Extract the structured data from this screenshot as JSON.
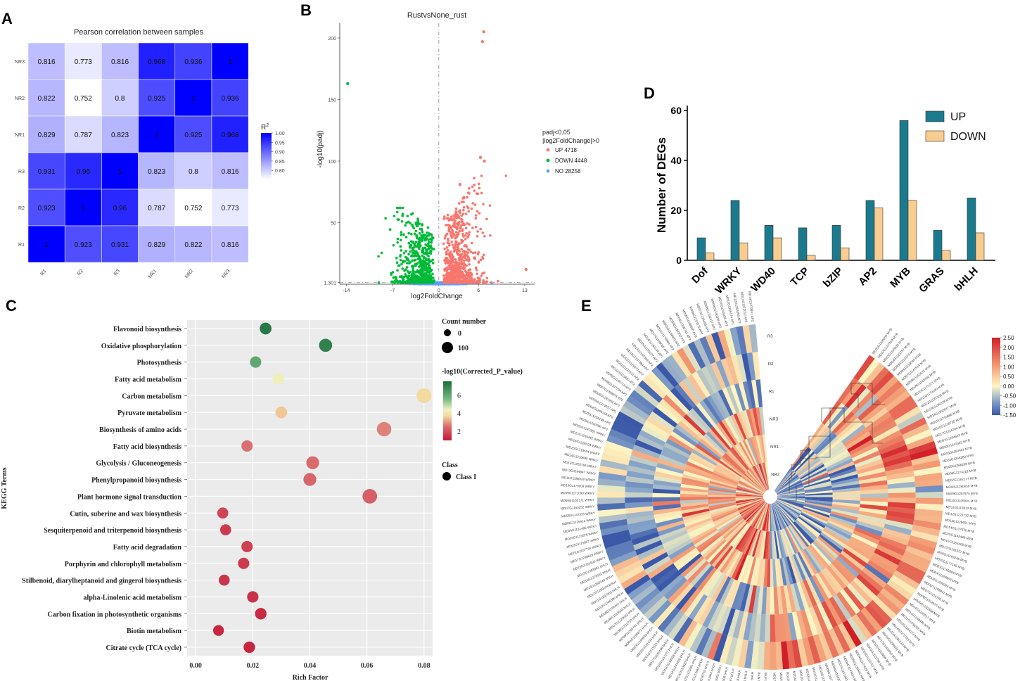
{
  "panel_labels": {
    "A": "A",
    "B": "B",
    "C": "C",
    "D": "D",
    "E": "E"
  },
  "chart_data": [
    {
      "panel": "A",
      "type": "heatmap",
      "title": "Pearson correlation between samples",
      "rows": [
        "NR3",
        "NR2",
        "NR1",
        "R3",
        "R2",
        "R1"
      ],
      "cols": [
        "R1",
        "R2",
        "R3",
        "NR1",
        "NR2",
        "NR3"
      ],
      "values": [
        [
          "0.816",
          "0.773",
          "0.816",
          "0.968",
          "0.936",
          "1"
        ],
        [
          "0.822",
          "0.752",
          "0.8",
          "0.925",
          "1",
          "0.936"
        ],
        [
          "0.829",
          "0.787",
          "0.823",
          "1",
          "0.925",
          "0.968"
        ],
        [
          "0.931",
          "0.96",
          "1",
          "0.823",
          "0.8",
          "0.816"
        ],
        [
          "0.923",
          "1",
          "0.96",
          "0.787",
          "0.752",
          "0.773"
        ],
        [
          "1",
          "0.923",
          "0.931",
          "0.829",
          "0.822",
          "0.816"
        ]
      ],
      "legend_title": "R",
      "legend_title_sup": "2",
      "legend_ticks": [
        "1.00",
        "0.95",
        "0.90",
        "0.85",
        "0.80"
      ],
      "legend_tick_values": [
        1.0,
        0.95,
        0.9,
        0.85,
        0.8
      ],
      "range": [
        0.752,
        1.0
      ],
      "colors": {
        "low": "#ffffff",
        "high": "#0000ff"
      }
    },
    {
      "panel": "B",
      "type": "scatter",
      "title": "RustvsNone_rust",
      "xlabel": "log2FoldChange",
      "ylabel": "-log10(padj)",
      "xlim": [
        -15,
        14.5
      ],
      "ylim": [
        0,
        212
      ],
      "xticks": [
        "-14",
        "-7",
        "0",
        "6",
        "13"
      ],
      "xtick_values": [
        -14,
        -7,
        0,
        6,
        13
      ],
      "yticks": [
        "1.301",
        "50",
        "100",
        "150",
        "200"
      ],
      "ytick_values": [
        1.301,
        50,
        100,
        150,
        200
      ],
      "threshold_y": 1.301,
      "legend_title": "padj<0.05\n|log2FoldChange|>0",
      "legend_title_lines": [
        "padj<0.05",
        "|log2FoldChange|>0"
      ],
      "series": [
        {
          "name": "UP",
          "label": "UP 4718",
          "count": 4718,
          "color": "#f8766d"
        },
        {
          "name": "DOWN",
          "label": "DOWN 4448",
          "count": 4448,
          "color": "#00ba38"
        },
        {
          "name": "NO",
          "label": "NO 28258",
          "count": 28258,
          "color": "#619cff"
        }
      ],
      "outliers": [
        {
          "x": -13.8,
          "y": 163,
          "series": "DOWN"
        },
        {
          "x": 6.8,
          "y": 205,
          "series": "UP"
        },
        {
          "x": 6.6,
          "y": 197,
          "series": "UP"
        },
        {
          "x": 6.3,
          "y": 103,
          "series": "UP"
        },
        {
          "x": 6.9,
          "y": 100,
          "series": "UP"
        },
        {
          "x": 3.2,
          "y": 81,
          "series": "UP"
        },
        {
          "x": 13.2,
          "y": 12,
          "series": "UP"
        }
      ]
    },
    {
      "panel": "C",
      "type": "scatter",
      "title": "",
      "xlabel": "Rich Factor",
      "ylabel": "KEGG Terms",
      "xlim": [
        -0.003,
        0.083
      ],
      "xticks": [
        "0.00",
        "0.02",
        "0.04",
        "0.06",
        "0.08"
      ],
      "xtick_values": [
        0,
        0.02,
        0.04,
        0.06,
        0.08
      ],
      "terms": [
        {
          "term": "Flavonoid biosynthesis",
          "rich": 0.0245,
          "count": 20,
          "p": 7.2
        },
        {
          "term": "Oxidative phosphorylation",
          "rich": 0.0455,
          "count": 45,
          "p": 7.0
        },
        {
          "term": "Photosynthesis",
          "rich": 0.021,
          "count": 15,
          "p": 6.0
        },
        {
          "term": "Fatty acid metabolism",
          "rich": 0.029,
          "count": 18,
          "p": 4.3
        },
        {
          "term": "Carbon metabolism",
          "rich": 0.08,
          "count": 90,
          "p": 3.7
        },
        {
          "term": "Pyruvate metabolism",
          "rich": 0.03,
          "count": 20,
          "p": 3.5
        },
        {
          "term": "Biosynthesis of amino acids",
          "rich": 0.066,
          "count": 80,
          "p": 2.8
        },
        {
          "term": "Fatty acid biosynthesis",
          "rich": 0.018,
          "count": 14,
          "p": 2.6
        },
        {
          "term": "Glycolysis / Gluconeogenesis",
          "rich": 0.041,
          "count": 40,
          "p": 2.5
        },
        {
          "term": "Phenylpropanoid biosynthesis",
          "rich": 0.04,
          "count": 40,
          "p": 2.4
        },
        {
          "term": "Plant hormone signal transduction",
          "rich": 0.061,
          "count": 85,
          "p": 2.3
        },
        {
          "term": "Cutin, suberine and wax biosynthesis",
          "rich": 0.0095,
          "count": 10,
          "p": 1.8
        },
        {
          "term": "Sesquiterpenoid and triterpenoid biosynthesis",
          "rich": 0.0105,
          "count": 10,
          "p": 1.6
        },
        {
          "term": "Fatty acid degradation",
          "rich": 0.018,
          "count": 14,
          "p": 1.7
        },
        {
          "term": "Porphyrin and chlorophyll metabolism",
          "rich": 0.0168,
          "count": 14,
          "p": 1.6
        },
        {
          "term": "Stilbenoid, diarylheptanoid and gingerol biosynthesis",
          "rich": 0.01,
          "count": 10,
          "p": 1.5
        },
        {
          "term": "alpha-Linolenic acid metabolism",
          "rich": 0.02,
          "count": 14,
          "p": 1.4
        },
        {
          "term": "Carbon fixation in photosynthetic organisms",
          "rich": 0.0228,
          "count": 16,
          "p": 1.3
        },
        {
          "term": "Biotin metabolism",
          "rich": 0.008,
          "count": 8,
          "p": 1.2
        },
        {
          "term": "Citrate cycle (TCA cycle)",
          "rich": 0.0188,
          "count": 16,
          "p": 1.2
        }
      ],
      "legend": {
        "count_title": "Count number",
        "count_labels": [
          "0",
          "100"
        ],
        "color_title": "-log10(Corrected_P_value)",
        "color_ticks": [
          "6",
          "4",
          "2"
        ],
        "color_tick_values": [
          6,
          4,
          2
        ],
        "color_range": [
          1,
          7.5
        ],
        "class_title": "Class",
        "class_label": "Class I"
      }
    },
    {
      "panel": "D",
      "type": "bar",
      "title": "",
      "xlabel": "",
      "ylabel": "Number of DEGs",
      "ylim": [
        0,
        62
      ],
      "yticks": [
        "0",
        "20",
        "40",
        "60"
      ],
      "ytick_values": [
        0,
        20,
        40,
        60
      ],
      "categories": [
        "Dof",
        "WRKY",
        "WD40",
        "TCP",
        "bZIP",
        "AP2",
        "MYB",
        "GRAS",
        "bHLH"
      ],
      "series": [
        {
          "name": "UP",
          "values": [
            9,
            24,
            14,
            13,
            14,
            24,
            56,
            12,
            25
          ],
          "color": "#1b7a8e"
        },
        {
          "name": "DOWN",
          "values": [
            3,
            7,
            9,
            2,
            5,
            21,
            24,
            4,
            11
          ],
          "color": "#f9cc8f"
        }
      ]
    },
    {
      "panel": "E",
      "type": "heatmap",
      "subtype": "circular",
      "ring_labels": [
        "R3",
        "R2",
        "R1",
        "NR3",
        "NR1",
        "NR2"
      ],
      "legend_ticks": [
        "2.50",
        "2.00",
        "1.50",
        "1.00",
        "0.50",
        "0.00",
        "-0.50",
        "-1.00",
        "-1.50"
      ],
      "legend_tick_values": [
        2.5,
        2.0,
        1.5,
        1.0,
        0.5,
        0.0,
        -0.5,
        -1.0,
        -1.5
      ],
      "range": [
        -1.5,
        2.5
      ],
      "colors": {
        "low": "#3b59a8",
        "mid": "#fdf6c3",
        "high": "#d9262b"
      }
    }
  ]
}
